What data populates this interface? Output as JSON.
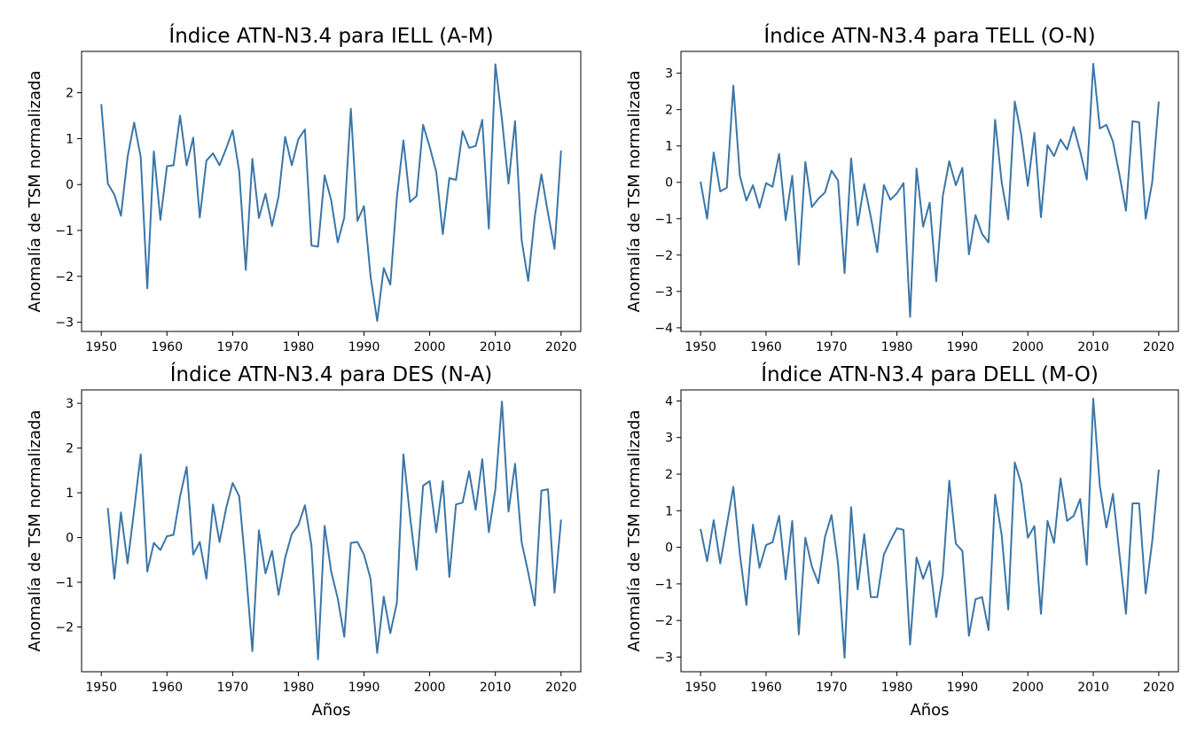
{
  "figure": {
    "line_color": "#3a76a8"
  },
  "chart_data": [
    {
      "type": "line",
      "title": "Índice ATN-N3.4 para IELL (A-M)",
      "xlabel": "",
      "ylabel": "Anomalía de TSM normalizada",
      "xlim": [
        1947,
        2023
      ],
      "ylim": [
        -3.2,
        2.9
      ],
      "xticks": [
        1950,
        1960,
        1970,
        1980,
        1990,
        2000,
        2010,
        2020
      ],
      "xtick_labels": [
        "1950",
        "1960",
        "1970",
        "1980",
        "1990",
        "2000",
        "2010",
        "2020"
      ],
      "yticks": [
        -3,
        -2,
        -1,
        0,
        1,
        2
      ],
      "ytick_labels": [
        "−3",
        "−2",
        "−1",
        "0",
        "1",
        "2"
      ],
      "x_start": 1950,
      "values": [
        1.75,
        0.02,
        -0.22,
        -0.68,
        0.6,
        1.35,
        0.6,
        -2.26,
        0.72,
        -0.77,
        0.4,
        0.42,
        1.5,
        0.42,
        1.02,
        -0.72,
        0.52,
        0.68,
        0.42,
        0.78,
        1.18,
        0.28,
        -1.86,
        0.56,
        -0.73,
        -0.2,
        -0.9,
        -0.26,
        1.04,
        0.42,
        0.99,
        1.2,
        -1.33,
        -1.35,
        0.2,
        -0.34,
        -1.26,
        -0.72,
        1.65,
        -0.79,
        -0.47,
        -2.0,
        -2.97,
        -1.82,
        -2.18,
        -0.28,
        0.96,
        -0.38,
        -0.25,
        1.3,
        0.82,
        0.28,
        -1.08,
        0.14,
        0.1,
        1.16,
        0.8,
        0.84,
        1.41,
        -0.96,
        2.62,
        1.42,
        0.02,
        1.38,
        -1.21,
        -2.1,
        -0.7,
        0.22,
        -0.62,
        -1.4,
        0.74
      ]
    },
    {
      "type": "line",
      "title": "Índice ATN-N3.4 para TELL (O-N)",
      "xlabel": "",
      "ylabel": "Anomalía de TSM normalizada",
      "xlim": [
        1947,
        2023
      ],
      "ylim": [
        -4.1,
        3.6
      ],
      "xticks": [
        1950,
        1960,
        1970,
        1980,
        1990,
        2000,
        2010,
        2020
      ],
      "xtick_labels": [
        "1950",
        "1960",
        "1970",
        "1980",
        "1990",
        "2000",
        "2010",
        "2020"
      ],
      "yticks": [
        -4,
        -3,
        -2,
        -1,
        0,
        1,
        2,
        3
      ],
      "ytick_labels": [
        "−4",
        "−3",
        "−2",
        "−1",
        "0",
        "1",
        "2",
        "3"
      ],
      "x_start": 1950,
      "values": [
        0.02,
        -1.0,
        0.82,
        -0.25,
        -0.15,
        2.66,
        0.18,
        -0.5,
        -0.08,
        -0.7,
        -0.02,
        -0.12,
        0.78,
        -1.04,
        0.18,
        -2.26,
        0.56,
        -0.68,
        -0.45,
        -0.28,
        0.32,
        0.05,
        -2.5,
        0.66,
        -1.18,
        -0.05,
        -0.95,
        -1.92,
        -0.08,
        -0.48,
        -0.3,
        -0.02,
        -3.7,
        0.38,
        -1.22,
        -0.56,
        -2.72,
        -0.38,
        0.58,
        -0.08,
        0.4,
        -1.98,
        -0.9,
        -1.42,
        -1.65,
        1.72,
        0.0,
        -1.02,
        2.22,
        1.3,
        -0.1,
        1.36,
        -0.96,
        1.02,
        0.72,
        1.18,
        0.9,
        1.52,
        0.85,
        0.08,
        3.26,
        1.48,
        1.58,
        1.12,
        0.2,
        -0.78,
        1.68,
        1.65,
        -1.0,
        0.0,
        2.22
      ]
    },
    {
      "type": "line",
      "title": "Índice ATN-N3.4 para DES (N-A)",
      "xlabel": "Años",
      "ylabel": "Anomalía de TSM normalizada",
      "xlim": [
        1947,
        2023
      ],
      "ylim": [
        -3.0,
        3.3
      ],
      "xticks": [
        1950,
        1960,
        1970,
        1980,
        1990,
        2000,
        2010,
        2020
      ],
      "xtick_labels": [
        "1950",
        "1960",
        "1970",
        "1980",
        "1990",
        "2000",
        "2010",
        "2020"
      ],
      "yticks": [
        -2,
        -1,
        0,
        1,
        2,
        3
      ],
      "ytick_labels": [
        "−2",
        "−1",
        "0",
        "1",
        "2",
        "3"
      ],
      "x_start": 1951,
      "values": [
        0.66,
        -0.92,
        0.56,
        -0.58,
        0.62,
        1.86,
        -0.76,
        -0.12,
        -0.28,
        0.03,
        0.06,
        0.92,
        1.58,
        -0.38,
        -0.1,
        -0.92,
        0.74,
        -0.1,
        0.65,
        1.22,
        0.92,
        -0.7,
        -2.54,
        0.16,
        -0.8,
        -0.3,
        -1.28,
        -0.45,
        0.08,
        0.28,
        0.72,
        -0.18,
        -2.72,
        0.26,
        -0.76,
        -1.36,
        -2.22,
        -0.12,
        -0.1,
        -0.38,
        -0.92,
        -2.58,
        -1.32,
        -2.14,
        -1.46,
        1.86,
        0.48,
        -0.72,
        1.16,
        1.26,
        0.12,
        1.26,
        -0.88,
        0.74,
        0.78,
        1.48,
        0.62,
        1.75,
        0.12,
        1.08,
        3.04,
        0.58,
        1.65,
        -0.1,
        -0.78,
        -1.52,
        1.05,
        1.08,
        -1.23,
        0.4
      ]
    },
    {
      "type": "line",
      "title": "Índice ATN-N3.4 para DELL (M-O)",
      "xlabel": "Años",
      "ylabel": "Anomalía de TSM normalizada",
      "xlim": [
        1947,
        2023
      ],
      "ylim": [
        -3.4,
        4.3
      ],
      "xticks": [
        1950,
        1960,
        1970,
        1980,
        1990,
        2000,
        2010,
        2020
      ],
      "xtick_labels": [
        "1950",
        "1960",
        "1970",
        "1980",
        "1990",
        "2000",
        "2010",
        "2020"
      ],
      "yticks": [
        -3,
        -2,
        -1,
        0,
        1,
        2,
        3,
        4
      ],
      "ytick_labels": [
        "−3",
        "−2",
        "−1",
        "0",
        "1",
        "2",
        "3",
        "4"
      ],
      "x_start": 1950,
      "values": [
        0.5,
        -0.38,
        0.74,
        -0.44,
        0.6,
        1.65,
        -0.18,
        -1.58,
        0.62,
        -0.56,
        0.06,
        0.14,
        0.86,
        -0.88,
        0.72,
        -2.38,
        0.26,
        -0.52,
        -0.98,
        0.28,
        0.88,
        -0.46,
        -3.02,
        1.1,
        -1.15,
        0.36,
        -1.36,
        -1.36,
        -0.2,
        0.18,
        0.52,
        0.48,
        -2.66,
        -0.28,
        -0.86,
        -0.38,
        -1.9,
        -0.75,
        1.82,
        0.1,
        -0.1,
        -2.42,
        -1.42,
        -1.36,
        -2.26,
        1.44,
        0.34,
        -1.7,
        2.32,
        1.74,
        0.26,
        0.58,
        -1.82,
        0.72,
        0.12,
        1.88,
        0.72,
        0.86,
        1.32,
        -0.48,
        4.06,
        1.68,
        0.54,
        1.46,
        -0.2,
        -1.82,
        1.2,
        1.2,
        -1.26,
        0.16,
        2.12
      ]
    }
  ]
}
